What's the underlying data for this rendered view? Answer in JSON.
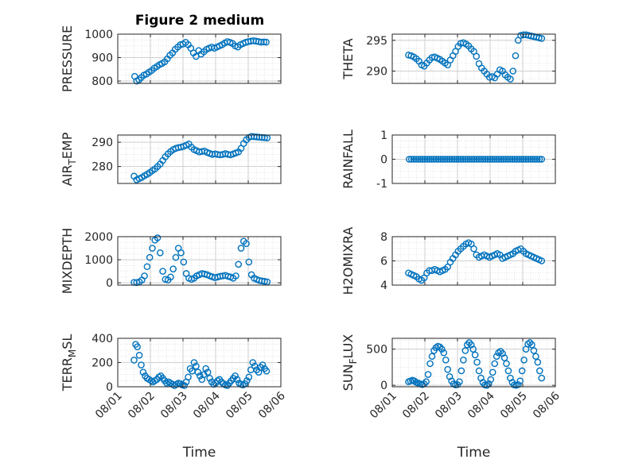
{
  "figure": {
    "title": "Figure 2 medium",
    "marker_color": "#0072BD"
  },
  "chart_data": [
    {
      "type": "scatter",
      "ylabel": "PRESSURE",
      "ylim": [
        790,
        1000
      ],
      "yticks": [
        800,
        900,
        1000
      ],
      "ytick_labels": [
        "800",
        "900",
        "1000"
      ],
      "xlim": [
        1,
        6
      ],
      "grid": true,
      "title": "Figure 2 medium",
      "x": [
        1.52,
        1.58,
        1.65,
        1.72,
        1.8,
        1.88,
        1.96,
        2.04,
        2.12,
        2.2,
        2.28,
        2.36,
        2.44,
        2.52,
        2.6,
        2.68,
        2.76,
        2.84,
        2.92,
        3.0,
        3.08,
        3.16,
        3.24,
        3.32,
        3.4,
        3.48,
        3.56,
        3.64,
        3.72,
        3.8,
        3.88,
        3.96,
        4.04,
        4.12,
        4.2,
        4.28,
        4.36,
        4.44,
        4.52,
        4.6,
        4.68,
        4.76,
        4.84,
        4.92,
        5.0,
        5.08,
        5.16,
        5.24,
        5.32,
        5.4,
        5.48,
        5.55
      ],
      "y": [
        820,
        800,
        805,
        815,
        825,
        830,
        838,
        845,
        855,
        862,
        870,
        875,
        882,
        895,
        910,
        920,
        935,
        945,
        955,
        958,
        965,
        955,
        940,
        920,
        905,
        930,
        915,
        925,
        935,
        940,
        945,
        940,
        945,
        950,
        955,
        962,
        968,
        965,
        960,
        950,
        945,
        955,
        960,
        965,
        968,
        970,
        972,
        970,
        968,
        966,
        967,
        966
      ]
    },
    {
      "type": "scatter",
      "ylabel": "THETA",
      "ylim": [
        288,
        296
      ],
      "yticks": [
        290,
        295
      ],
      "ytick_labels": [
        "290",
        "295"
      ],
      "xlim": [
        1,
        6
      ],
      "grid": true,
      "x": [
        1.5,
        1.58,
        1.66,
        1.74,
        1.82,
        1.9,
        1.98,
        2.06,
        2.14,
        2.22,
        2.3,
        2.38,
        2.46,
        2.54,
        2.62,
        2.7,
        2.78,
        2.86,
        2.94,
        3.02,
        3.1,
        3.18,
        3.26,
        3.34,
        3.42,
        3.5,
        3.58,
        3.66,
        3.74,
        3.82,
        3.9,
        3.98,
        4.06,
        4.14,
        4.22,
        4.3,
        4.38,
        4.46,
        4.54,
        4.62,
        4.7,
        4.78,
        4.86,
        4.94,
        5.02,
        5.1,
        5.18,
        5.26,
        5.34,
        5.42,
        5.5,
        5.58
      ],
      "y": [
        292.6,
        292.5,
        292.3,
        292.0,
        291.6,
        291.0,
        290.8,
        291.3,
        291.8,
        292.2,
        292.3,
        292.1,
        291.9,
        291.6,
        291.3,
        291.0,
        291.8,
        292.5,
        293.2,
        294.0,
        294.5,
        294.6,
        294.4,
        294.1,
        293.6,
        293.2,
        292.4,
        291.2,
        290.5,
        290.0,
        289.5,
        289.0,
        289.1,
        288.9,
        289.5,
        290.2,
        290.0,
        289.4,
        289.0,
        288.7,
        290.0,
        292.5,
        295.0,
        295.8,
        295.9,
        295.9,
        295.8,
        295.7,
        295.6,
        295.5,
        295.4,
        295.3
      ]
    },
    {
      "type": "scatter",
      "ylabel": "AIR_TEMP",
      "ylim": [
        273,
        293
      ],
      "yticks": [
        280,
        290
      ],
      "ytick_labels": [
        "280",
        "290"
      ],
      "xlim": [
        1,
        6
      ],
      "grid": true,
      "x": [
        1.5,
        1.58,
        1.66,
        1.74,
        1.82,
        1.9,
        1.98,
        2.06,
        2.14,
        2.22,
        2.3,
        2.38,
        2.46,
        2.54,
        2.62,
        2.7,
        2.78,
        2.86,
        2.94,
        3.02,
        3.1,
        3.18,
        3.26,
        3.34,
        3.42,
        3.5,
        3.58,
        3.66,
        3.74,
        3.82,
        3.9,
        3.98,
        4.06,
        4.14,
        4.22,
        4.3,
        4.38,
        4.46,
        4.54,
        4.62,
        4.7,
        4.78,
        4.86,
        4.94,
        5.02,
        5.1,
        5.18,
        5.26,
        5.34,
        5.42,
        5.5,
        5.58
      ],
      "y": [
        276.0,
        274.5,
        275.0,
        275.5,
        276.2,
        276.8,
        277.5,
        278.3,
        279.0,
        280.0,
        281.0,
        282.5,
        284.0,
        285.2,
        286.2,
        287.0,
        287.5,
        287.8,
        288.0,
        288.3,
        288.8,
        289.3,
        288.0,
        287.0,
        286.5,
        286.0,
        286.2,
        286.4,
        285.8,
        285.4,
        285.0,
        285.2,
        285.0,
        284.8,
        285.0,
        285.3,
        285.0,
        284.8,
        285.2,
        285.6,
        286.0,
        287.5,
        289.5,
        291.0,
        292.0,
        292.4,
        292.3,
        292.2,
        292.1,
        292.0,
        291.9,
        291.8
      ]
    },
    {
      "type": "scatter",
      "ylabel": "RAINFALL",
      "ylim": [
        -1,
        1
      ],
      "yticks": [
        -1,
        0,
        1
      ],
      "ytick_labels": [
        "-1",
        "0",
        "1"
      ],
      "xlim": [
        1,
        6
      ],
      "grid": true,
      "x_start": 1.52,
      "x_end": 5.58,
      "count": 60,
      "constant_y": 0
    },
    {
      "type": "scatter",
      "ylabel": "MIXDEPTH",
      "ylim": [
        -100,
        2000
      ],
      "yticks": [
        0,
        1000,
        2000
      ],
      "ytick_labels": [
        "0",
        "1000",
        "2000"
      ],
      "xlim": [
        1,
        6
      ],
      "grid": true,
      "x": [
        1.5,
        1.58,
        1.66,
        1.74,
        1.82,
        1.9,
        1.98,
        2.06,
        2.14,
        2.22,
        2.3,
        2.38,
        2.46,
        2.54,
        2.62,
        2.7,
        2.78,
        2.86,
        2.94,
        3.02,
        3.1,
        3.18,
        3.26,
        3.34,
        3.42,
        3.5,
        3.58,
        3.66,
        3.74,
        3.82,
        3.9,
        3.98,
        4.06,
        4.14,
        4.22,
        4.3,
        4.38,
        4.46,
        4.54,
        4.62,
        4.7,
        4.78,
        4.86,
        4.94,
        5.02,
        5.1,
        5.18,
        5.26,
        5.34,
        5.42,
        5.5,
        5.58
      ],
      "y": [
        20,
        10,
        40,
        120,
        300,
        700,
        1100,
        1500,
        1850,
        1950,
        1300,
        500,
        150,
        120,
        250,
        600,
        1100,
        1500,
        1300,
        900,
        400,
        200,
        150,
        200,
        300,
        350,
        400,
        380,
        350,
        300,
        260,
        220,
        250,
        280,
        300,
        320,
        280,
        250,
        200,
        300,
        800,
        1500,
        1800,
        1700,
        900,
        350,
        200,
        150,
        100,
        80,
        60,
        40
      ]
    },
    {
      "type": "scatter",
      "ylabel": "H2OMIXRA",
      "ylim": [
        4,
        8
      ],
      "yticks": [
        4,
        6,
        8
      ],
      "ytick_labels": [
        "4",
        "6",
        "8"
      ],
      "xlim": [
        1,
        6
      ],
      "grid": true,
      "x": [
        1.5,
        1.58,
        1.66,
        1.74,
        1.82,
        1.9,
        1.98,
        2.06,
        2.14,
        2.22,
        2.3,
        2.38,
        2.46,
        2.54,
        2.62,
        2.7,
        2.78,
        2.86,
        2.94,
        3.02,
        3.1,
        3.18,
        3.26,
        3.34,
        3.42,
        3.5,
        3.58,
        3.66,
        3.74,
        3.82,
        3.9,
        3.98,
        4.06,
        4.14,
        4.22,
        4.3,
        4.38,
        4.46,
        4.54,
        4.62,
        4.7,
        4.78,
        4.86,
        4.94,
        5.02,
        5.1,
        5.18,
        5.26,
        5.34,
        5.42,
        5.5,
        5.58
      ],
      "y": [
        5.0,
        4.9,
        4.8,
        4.7,
        4.5,
        4.4,
        4.6,
        5.0,
        5.2,
        5.2,
        5.3,
        5.2,
        5.1,
        5.2,
        5.3,
        5.5,
        5.9,
        6.2,
        6.5,
        6.8,
        7.0,
        7.2,
        7.4,
        7.5,
        7.4,
        7.0,
        6.5,
        6.3,
        6.4,
        6.5,
        6.4,
        6.3,
        6.4,
        6.5,
        6.6,
        6.5,
        6.2,
        6.3,
        6.4,
        6.5,
        6.6,
        6.8,
        6.9,
        7.0,
        6.8,
        6.6,
        6.5,
        6.4,
        6.3,
        6.2,
        6.1,
        6.0
      ]
    },
    {
      "type": "scatter",
      "ylabel": "TERR_MSL",
      "ylim": [
        0,
        400
      ],
      "yticks": [
        0,
        200,
        400
      ],
      "ytick_labels": [
        "0",
        "200",
        "400"
      ],
      "xlim": [
        1,
        6
      ],
      "grid": true,
      "x": [
        1.5,
        1.55,
        1.6,
        1.66,
        1.72,
        1.78,
        1.84,
        1.9,
        1.96,
        2.02,
        2.08,
        2.14,
        2.2,
        2.26,
        2.32,
        2.38,
        2.44,
        2.5,
        2.56,
        2.62,
        2.68,
        2.74,
        2.8,
        2.86,
        2.92,
        2.98,
        3.04,
        3.1,
        3.16,
        3.22,
        3.28,
        3.34,
        3.4,
        3.46,
        3.52,
        3.58,
        3.64,
        3.7,
        3.76,
        3.82,
        3.88,
        3.94,
        4.0,
        4.06,
        4.12,
        4.18,
        4.24,
        4.3,
        4.36,
        4.42,
        4.48,
        4.54,
        4.6,
        4.66,
        4.72,
        4.78,
        4.84,
        4.9,
        4.96,
        5.02,
        5.08,
        5.14,
        5.2,
        5.26,
        5.32,
        5.38,
        5.44,
        5.5,
        5.56
      ],
      "y": [
        220,
        350,
        330,
        260,
        180,
        120,
        90,
        70,
        60,
        50,
        40,
        50,
        60,
        80,
        90,
        70,
        50,
        30,
        40,
        30,
        20,
        10,
        20,
        30,
        25,
        15,
        10,
        40,
        80,
        150,
        130,
        200,
        170,
        120,
        90,
        60,
        100,
        150,
        120,
        70,
        40,
        20,
        30,
        50,
        60,
        40,
        25,
        15,
        10,
        30,
        50,
        70,
        90,
        60,
        30,
        20,
        15,
        25,
        50,
        80,
        140,
        200,
        170,
        140,
        120,
        160,
        180,
        150,
        130
      ]
    },
    {
      "type": "scatter",
      "ylabel": "SUN_FLUX",
      "ylim": [
        -20,
        650
      ],
      "yticks": [
        0,
        500
      ],
      "ytick_labels": [
        "0",
        "500"
      ],
      "xlim": [
        1,
        6
      ],
      "grid": true,
      "x": [
        1.5,
        1.56,
        1.62,
        1.68,
        1.74,
        1.8,
        1.86,
        1.92,
        1.98,
        2.04,
        2.1,
        2.16,
        2.22,
        2.28,
        2.34,
        2.4,
        2.46,
        2.52,
        2.58,
        2.64,
        2.7,
        2.76,
        2.82,
        2.88,
        2.94,
        3.0,
        3.06,
        3.12,
        3.18,
        3.24,
        3.3,
        3.36,
        3.42,
        3.48,
        3.54,
        3.6,
        3.66,
        3.72,
        3.78,
        3.84,
        3.9,
        3.96,
        4.02,
        4.08,
        4.14,
        4.2,
        4.26,
        4.32,
        4.38,
        4.44,
        4.5,
        4.56,
        4.62,
        4.68,
        4.74,
        4.8,
        4.86,
        4.92,
        4.98,
        5.04,
        5.1,
        5.16,
        5.22,
        5.28,
        5.34,
        5.4,
        5.46,
        5.52,
        5.58
      ],
      "y": [
        50,
        60,
        70,
        60,
        40,
        30,
        20,
        10,
        20,
        50,
        150,
        300,
        400,
        480,
        520,
        540,
        530,
        500,
        450,
        350,
        220,
        120,
        60,
        20,
        5,
        10,
        50,
        200,
        350,
        480,
        560,
        590,
        560,
        500,
        420,
        320,
        200,
        100,
        40,
        5,
        0,
        20,
        80,
        180,
        300,
        400,
        450,
        470,
        440,
        380,
        300,
        200,
        100,
        40,
        5,
        0,
        10,
        60,
        200,
        350,
        500,
        570,
        590,
        560,
        480,
        400,
        320,
        200,
        100
      ]
    }
  ],
  "x_axis": {
    "tick_values": [
      1,
      2,
      3,
      4,
      5,
      6
    ],
    "tick_labels": [
      "08/01",
      "08/02",
      "08/03",
      "08/04",
      "08/05",
      "08/06"
    ],
    "label": "Time"
  }
}
